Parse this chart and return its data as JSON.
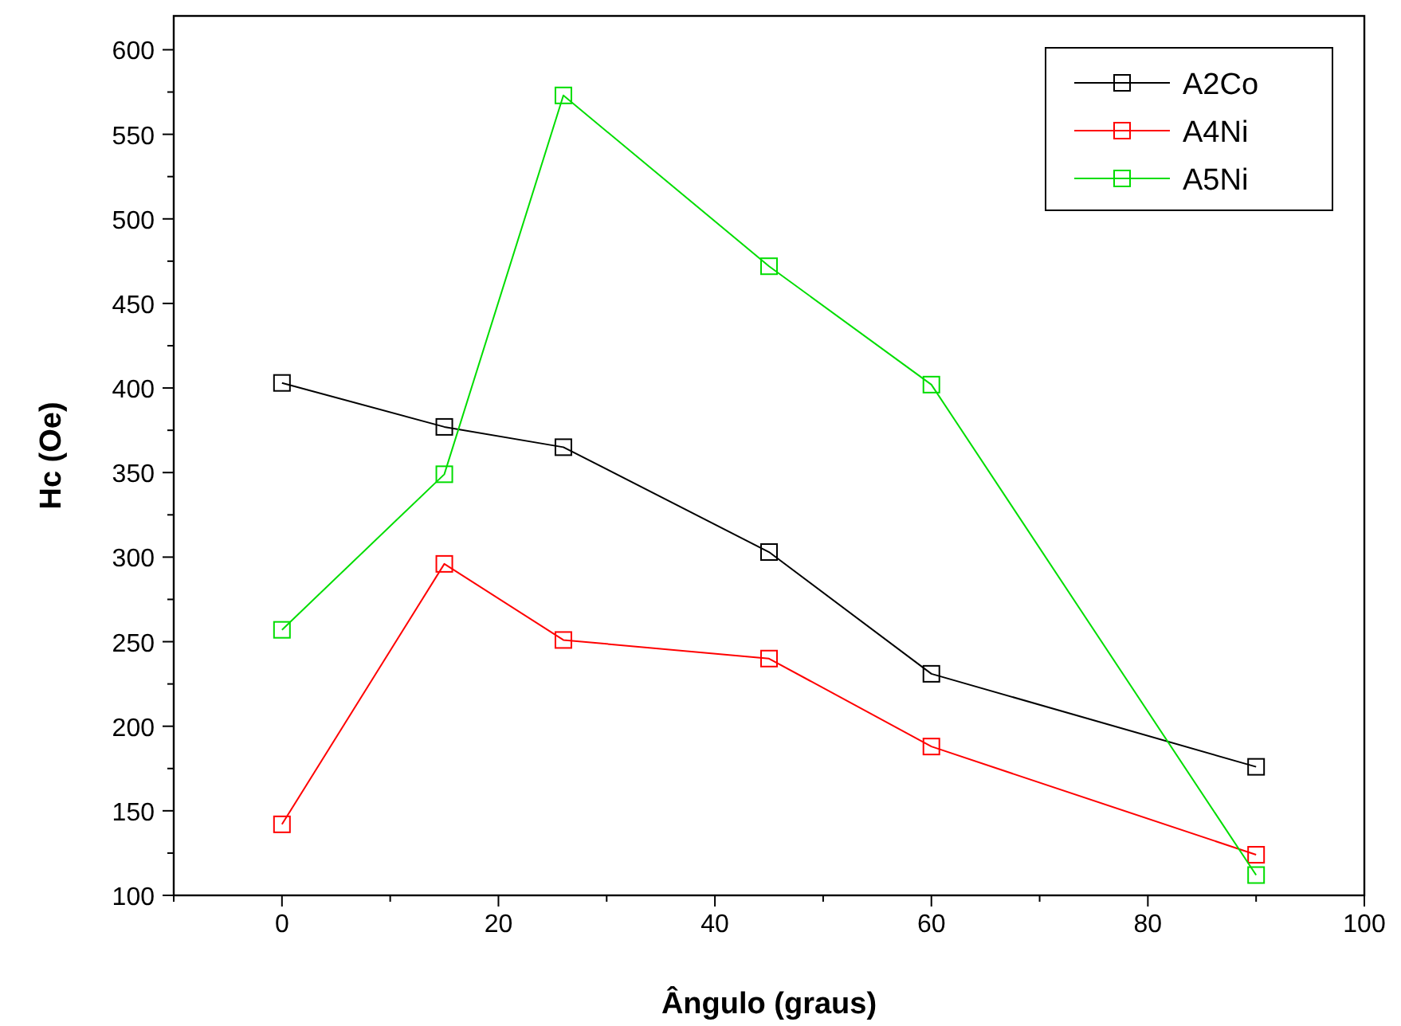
{
  "chart_data": {
    "type": "line",
    "xlabel": "Ângulo (graus)",
    "ylabel": "Hc (Oe)",
    "x": [
      0,
      15,
      26,
      45,
      60,
      90
    ],
    "series": [
      {
        "name": "A2Co",
        "color": "#000000",
        "values": [
          403,
          377,
          365,
          303,
          231,
          176
        ]
      },
      {
        "name": "A4Ni",
        "color": "#ff0000",
        "values": [
          142,
          296,
          251,
          240,
          188,
          124
        ]
      },
      {
        "name": "A5Ni",
        "color": "#00dd00",
        "values": [
          257,
          349,
          573,
          472,
          402,
          112
        ]
      }
    ],
    "xlim": [
      -10,
      100
    ],
    "ylim": [
      100,
      620
    ],
    "xticks": [
      {
        "value": -10,
        "label": null
      },
      0,
      {
        "value": 10,
        "label": null
      },
      20,
      {
        "value": 30,
        "label": null
      },
      40,
      {
        "value": 50,
        "label": null
      },
      60,
      {
        "value": 70,
        "label": null
      },
      80,
      {
        "value": 90,
        "label": null
      },
      100
    ],
    "yticks": [
      100,
      {
        "value": 125,
        "label": null
      },
      150,
      {
        "value": 175,
        "label": null
      },
      200,
      {
        "value": 225,
        "label": null
      },
      250,
      {
        "value": 275,
        "label": null
      },
      300,
      {
        "value": 325,
        "label": null
      },
      350,
      {
        "value": 375,
        "label": null
      },
      400,
      {
        "value": 425,
        "label": null
      },
      450,
      {
        "value": 475,
        "label": null
      },
      500,
      {
        "value": 525,
        "label": null
      },
      550,
      {
        "value": 575,
        "label": null
      },
      600
    ],
    "marker": "square",
    "line_style": "solid",
    "legend": "top right",
    "grid": false
  }
}
